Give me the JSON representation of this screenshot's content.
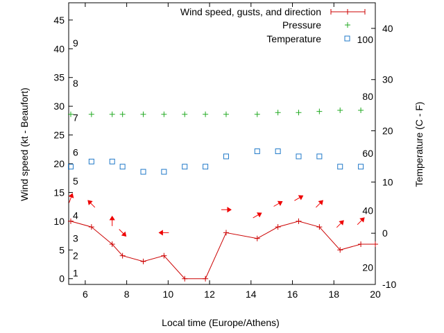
{
  "chart_data": {
    "type": "line",
    "xlabel": "Local time (Europe/Athens)",
    "ylabel": "Wind speed (kt - Beaufort)",
    "y2label": "Temperature (C - F)",
    "xlim": [
      5.2,
      20
    ],
    "ylim": [
      -1,
      48
    ],
    "y2lim": [
      -10,
      45
    ],
    "x_ticks": [
      6,
      8,
      10,
      12,
      14,
      16,
      18,
      20
    ],
    "y_ticks": [
      0,
      5,
      10,
      15,
      20,
      25,
      30,
      35,
      40,
      45
    ],
    "y2_ticks": [
      -10,
      0,
      10,
      20,
      30,
      40
    ],
    "beaufort_labels": [
      {
        "label": "1",
        "y": 1
      },
      {
        "label": "2",
        "y": 4
      },
      {
        "label": "3",
        "y": 7
      },
      {
        "label": "4",
        "y": 11
      },
      {
        "label": "5",
        "y": 17
      },
      {
        "label": "6",
        "y": 22
      },
      {
        "label": "7",
        "y": 28
      },
      {
        "label": "8",
        "y": 34
      },
      {
        "label": "9",
        "y": 41
      }
    ],
    "fahrenheit_labels": [
      {
        "label": "20",
        "y2": -6.7
      },
      {
        "label": "40",
        "y2": 4.4
      },
      {
        "label": "60",
        "y2": 15.6
      },
      {
        "label": "80",
        "y2": 26.7
      },
      {
        "label": "100",
        "y2": 37.8
      }
    ],
    "legend_position": "top-right",
    "grid": false,
    "series": [
      {
        "name": "Wind speed, gusts, and direction",
        "color": "#cc0000",
        "marker": "plus-line",
        "x": [
          5.3,
          6.3,
          7.3,
          7.8,
          8.8,
          9.8,
          10.8,
          11.8,
          12.8,
          14.3,
          15.3,
          16.3,
          17.3,
          18.3,
          19.3,
          20.0
        ],
        "y": [
          10,
          9,
          6,
          4,
          3,
          4,
          0,
          0,
          8,
          7,
          9,
          10,
          9,
          5,
          6,
          6
        ]
      },
      {
        "name": "Pressure",
        "color": "#22aa22",
        "marker": "plus",
        "x": [
          5.3,
          6.3,
          7.3,
          7.8,
          8.8,
          9.8,
          10.8,
          11.8,
          12.8,
          14.3,
          15.3,
          16.3,
          17.3,
          18.3,
          19.3
        ],
        "y": [
          28.6,
          28.6,
          28.6,
          28.6,
          28.6,
          28.6,
          28.6,
          28.6,
          28.6,
          28.6,
          28.9,
          28.9,
          29.1,
          29.3,
          29.3
        ]
      },
      {
        "name": "Temperature",
        "color": "#1f78c8",
        "marker": "square",
        "axis": "y2",
        "x": [
          5.3,
          6.3,
          7.3,
          7.8,
          8.8,
          9.8,
          10.8,
          11.8,
          12.8,
          14.3,
          15.3,
          16.3,
          17.3,
          18.3,
          19.3
        ],
        "y": [
          13,
          14,
          14,
          13,
          12,
          12,
          13,
          13,
          15,
          16,
          16,
          15,
          15,
          13,
          13
        ]
      }
    ],
    "wind_direction": {
      "color": "#ee0000",
      "x": [
        5.3,
        6.3,
        7.3,
        7.8,
        9.8,
        12.8,
        14.3,
        15.3,
        16.3,
        17.3,
        18.3,
        19.3
      ],
      "y": [
        14,
        13,
        10,
        8,
        8,
        12,
        11,
        13,
        14,
        13,
        9.5,
        10
      ],
      "direction_deg": [
        20,
        315,
        0,
        135,
        270,
        90,
        60,
        60,
        60,
        45,
        45,
        45
      ]
    }
  }
}
